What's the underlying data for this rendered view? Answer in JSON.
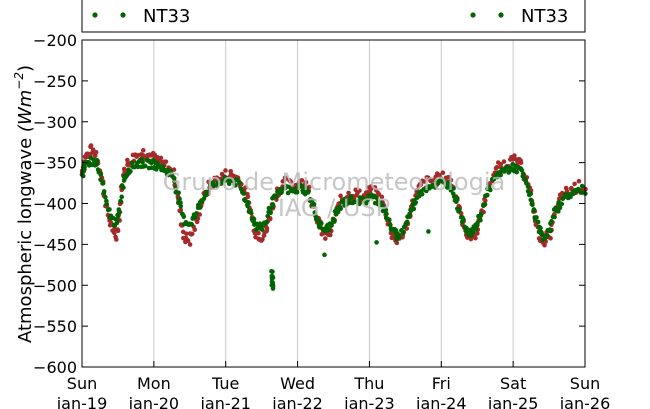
{
  "chart_data": {
    "type": "scatter",
    "title": "",
    "xlabel": "",
    "ylabel": "Atmospheric longwave (Wm⁻²)",
    "ylabel_parts": {
      "main": "Atmospheric longwave ",
      "unit": "(Wm",
      "exp": "−2",
      "close": ")"
    },
    "ylim": [
      -600,
      -200
    ],
    "yticks": [
      -200,
      -250,
      -300,
      -350,
      -400,
      -450,
      -500,
      -550,
      -600
    ],
    "ytick_labels": [
      "−200",
      "−250",
      "−300",
      "−350",
      "−400",
      "−450",
      "−500",
      "−550",
      "−600"
    ],
    "xlim": [
      0,
      7
    ],
    "x_units": "days since Sun jan-19",
    "xticks": [
      {
        "x": 0,
        "day": "Sun",
        "date": "jan-19"
      },
      {
        "x": 1,
        "day": "Mon",
        "date": "jan-20"
      },
      {
        "x": 2,
        "day": "Tue",
        "date": "jan-21"
      },
      {
        "x": 3,
        "day": "Wed",
        "date": "jan-22"
      },
      {
        "x": 4,
        "day": "Thu",
        "date": "jan-23"
      },
      {
        "x": 5,
        "day": "Fri",
        "date": "jan-24"
      },
      {
        "x": 6,
        "day": "Sat",
        "date": "jan-25"
      },
      {
        "x": 7,
        "day": "Sun",
        "date": "jan-26"
      }
    ],
    "grid_x": true,
    "grid_y": false,
    "legend": {
      "placement": "top",
      "entries": [
        "NT33",
        "NT33"
      ]
    },
    "watermark": [
      "Grupo de Micrometeorologia",
      "IAG / USP"
    ],
    "series": [
      {
        "name": "NT33",
        "color": "#a52a2a",
        "points": [
          [
            0.0,
            -360
          ],
          [
            0.05,
            -345
          ],
          [
            0.12,
            -335
          ],
          [
            0.2,
            -338
          ],
          [
            0.28,
            -370
          ],
          [
            0.35,
            -410
          ],
          [
            0.42,
            -430
          ],
          [
            0.48,
            -440
          ],
          [
            0.52,
            -410
          ],
          [
            0.58,
            -360
          ],
          [
            0.65,
            -350
          ],
          [
            0.75,
            -342
          ],
          [
            0.85,
            -338
          ],
          [
            0.92,
            -340
          ],
          [
            1.0,
            -345
          ],
          [
            1.08,
            -350
          ],
          [
            1.18,
            -355
          ],
          [
            1.28,
            -365
          ],
          [
            1.35,
            -400
          ],
          [
            1.42,
            -440
          ],
          [
            1.5,
            -445
          ],
          [
            1.58,
            -425
          ],
          [
            1.66,
            -400
          ],
          [
            1.76,
            -380
          ],
          [
            1.88,
            -370
          ],
          [
            2.0,
            -365
          ],
          [
            2.1,
            -365
          ],
          [
            2.2,
            -372
          ],
          [
            2.28,
            -390
          ],
          [
            2.35,
            -410
          ],
          [
            2.42,
            -435
          ],
          [
            2.5,
            -440
          ],
          [
            2.58,
            -430
          ],
          [
            2.64,
            -405
          ],
          [
            2.72,
            -385
          ],
          [
            2.82,
            -375
          ],
          [
            2.95,
            -380
          ],
          [
            3.05,
            -372
          ],
          [
            3.14,
            -380
          ],
          [
            3.22,
            -400
          ],
          [
            3.3,
            -425
          ],
          [
            3.38,
            -440
          ],
          [
            3.46,
            -435
          ],
          [
            3.54,
            -410
          ],
          [
            3.62,
            -395
          ],
          [
            3.7,
            -390
          ],
          [
            3.8,
            -388
          ],
          [
            3.92,
            -392
          ],
          [
            4.0,
            -385
          ],
          [
            4.1,
            -388
          ],
          [
            4.18,
            -398
          ],
          [
            4.26,
            -420
          ],
          [
            4.33,
            -440
          ],
          [
            4.4,
            -445
          ],
          [
            4.48,
            -435
          ],
          [
            4.55,
            -415
          ],
          [
            4.62,
            -395
          ],
          [
            4.72,
            -378
          ],
          [
            4.84,
            -372
          ],
          [
            4.95,
            -370
          ],
          [
            5.05,
            -368
          ],
          [
            5.15,
            -375
          ],
          [
            5.22,
            -395
          ],
          [
            5.3,
            -425
          ],
          [
            5.38,
            -440
          ],
          [
            5.46,
            -440
          ],
          [
            5.54,
            -420
          ],
          [
            5.62,
            -390
          ],
          [
            5.72,
            -365
          ],
          [
            5.82,
            -355
          ],
          [
            5.92,
            -350
          ],
          [
            6.02,
            -348
          ],
          [
            6.12,
            -355
          ],
          [
            6.2,
            -375
          ],
          [
            6.28,
            -405
          ],
          [
            6.35,
            -435
          ],
          [
            6.42,
            -445
          ],
          [
            6.5,
            -440
          ],
          [
            6.58,
            -415
          ],
          [
            6.66,
            -395
          ],
          [
            6.76,
            -385
          ],
          [
            6.88,
            -380
          ],
          [
            7.0,
            -378
          ]
        ]
      },
      {
        "name": "NT33",
        "color": "#006400",
        "points": [
          [
            0.0,
            -365
          ],
          [
            0.05,
            -355
          ],
          [
            0.12,
            -348
          ],
          [
            0.2,
            -350
          ],
          [
            0.28,
            -375
          ],
          [
            0.35,
            -405
          ],
          [
            0.42,
            -420
          ],
          [
            0.48,
            -425
          ],
          [
            0.52,
            -405
          ],
          [
            0.58,
            -370
          ],
          [
            0.65,
            -358
          ],
          [
            0.75,
            -352
          ],
          [
            0.85,
            -350
          ],
          [
            0.92,
            -352
          ],
          [
            1.0,
            -352
          ],
          [
            1.08,
            -355
          ],
          [
            1.18,
            -360
          ],
          [
            1.28,
            -368
          ],
          [
            1.35,
            -395
          ],
          [
            1.42,
            -420
          ],
          [
            1.5,
            -425
          ],
          [
            1.58,
            -415
          ],
          [
            1.66,
            -395
          ],
          [
            1.76,
            -382
          ],
          [
            1.88,
            -376
          ],
          [
            2.0,
            -372
          ],
          [
            2.1,
            -372
          ],
          [
            2.2,
            -378
          ],
          [
            2.28,
            -395
          ],
          [
            2.35,
            -412
          ],
          [
            2.42,
            -428
          ],
          [
            2.5,
            -430
          ],
          [
            2.58,
            -420
          ],
          [
            2.64,
            -400
          ],
          [
            2.72,
            -390
          ],
          [
            2.82,
            -382
          ],
          [
            2.95,
            -386
          ],
          [
            3.05,
            -380
          ],
          [
            3.14,
            -386
          ],
          [
            3.22,
            -405
          ],
          [
            3.3,
            -425
          ],
          [
            3.38,
            -432
          ],
          [
            3.46,
            -428
          ],
          [
            3.54,
            -412
          ],
          [
            3.62,
            -400
          ],
          [
            3.7,
            -396
          ],
          [
            3.8,
            -395
          ],
          [
            3.92,
            -398
          ],
          [
            4.0,
            -392
          ],
          [
            4.1,
            -395
          ],
          [
            4.18,
            -402
          ],
          [
            4.26,
            -420
          ],
          [
            4.33,
            -435
          ],
          [
            4.4,
            -440
          ],
          [
            4.48,
            -432
          ],
          [
            4.55,
            -415
          ],
          [
            4.62,
            -400
          ],
          [
            4.72,
            -385
          ],
          [
            4.84,
            -378
          ],
          [
            4.95,
            -376
          ],
          [
            5.05,
            -374
          ],
          [
            5.15,
            -380
          ],
          [
            5.22,
            -398
          ],
          [
            5.3,
            -422
          ],
          [
            5.38,
            -435
          ],
          [
            5.46,
            -433
          ],
          [
            5.54,
            -418
          ],
          [
            5.62,
            -392
          ],
          [
            5.72,
            -372
          ],
          [
            5.82,
            -362
          ],
          [
            5.92,
            -358
          ],
          [
            6.02,
            -356
          ],
          [
            6.12,
            -362
          ],
          [
            6.2,
            -380
          ],
          [
            6.28,
            -405
          ],
          [
            6.35,
            -430
          ],
          [
            6.42,
            -440
          ],
          [
            6.5,
            -435
          ],
          [
            6.58,
            -412
          ],
          [
            6.66,
            -398
          ],
          [
            6.76,
            -390
          ],
          [
            6.88,
            -385
          ],
          [
            7.0,
            -383
          ],
          [
            2.64,
            -480
          ],
          [
            2.65,
            -495
          ],
          [
            2.65,
            -500
          ]
        ]
      }
    ]
  }
}
